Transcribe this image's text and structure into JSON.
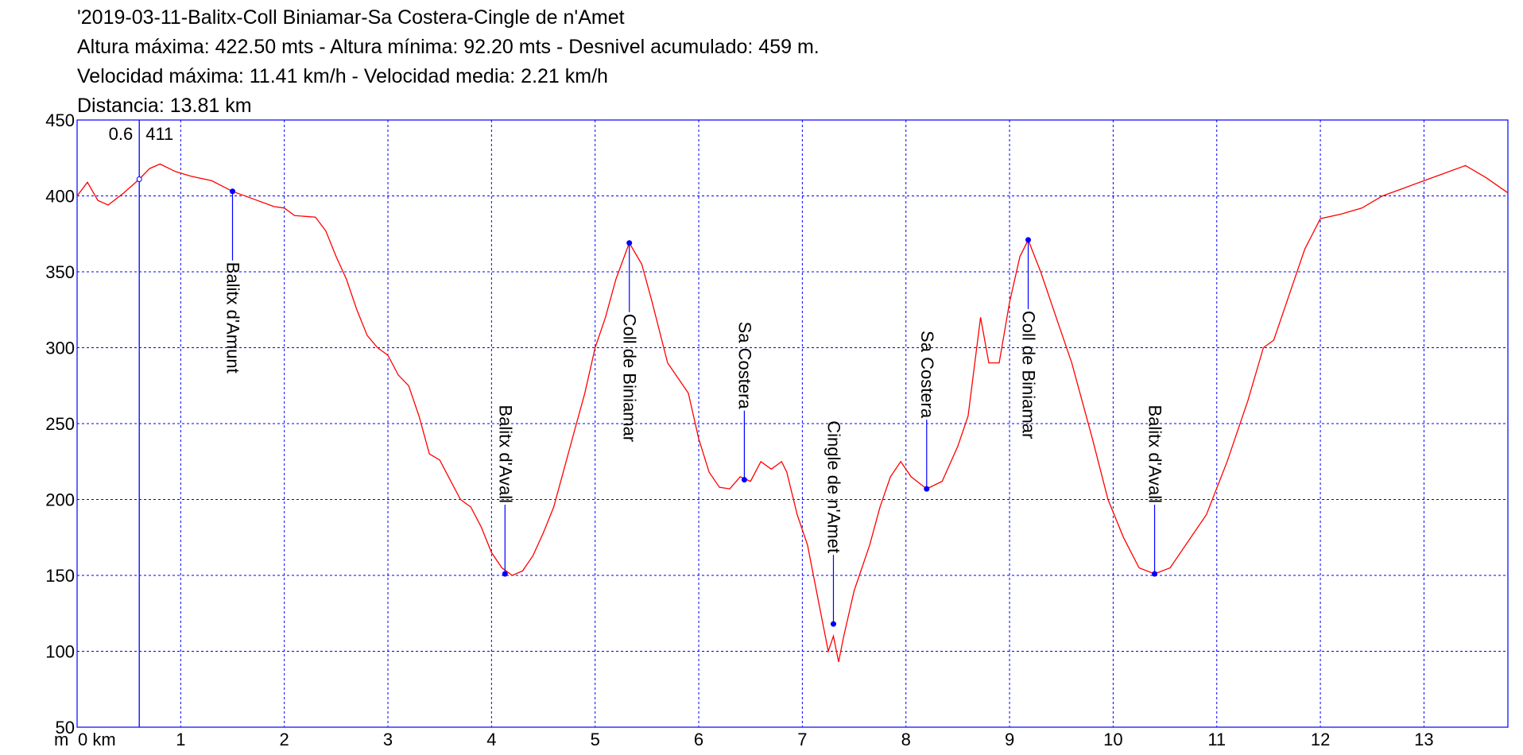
{
  "chart_data": {
    "type": "line",
    "title_lines": [
      "'2019-03-11-Balitx-Coll Biniamar-Sa Costera-Cingle de n'Amet",
      "Altura máxima: 422.50 mts - Altura mínima: 92.20 mts - Desnivel acumulado: 459 m.",
      "Velocidad máxima: 11.41 km/h - Velocidad media: 2.21 km/h",
      "Distancia: 13.81 km"
    ],
    "y_unit": "m",
    "xlim": [
      0,
      13.81
    ],
    "ylim": [
      50,
      450
    ],
    "xticks": [
      {
        "value": 0,
        "label": "0 km"
      },
      1,
      2,
      3,
      4,
      5,
      6,
      7,
      8,
      9,
      10,
      11,
      12,
      13
    ],
    "yticks": [
      50,
      100,
      150,
      200,
      250,
      300,
      350,
      400,
      450
    ],
    "grid": true,
    "line_color": "#ff0000",
    "axis_color": "#0000ff",
    "profile": {
      "x": [
        0,
        0.1,
        0.2,
        0.3,
        0.45,
        0.6,
        0.7,
        0.8,
        0.95,
        1.1,
        1.3,
        1.5,
        1.7,
        1.9,
        2.0,
        2.1,
        2.3,
        2.4,
        2.5,
        2.6,
        2.7,
        2.8,
        2.9,
        3.0,
        3.1,
        3.2,
        3.3,
        3.4,
        3.5,
        3.6,
        3.7,
        3.8,
        3.9,
        4.0,
        4.1,
        4.2,
        4.3,
        4.4,
        4.5,
        4.6,
        4.7,
        4.8,
        4.9,
        5.0,
        5.1,
        5.2,
        5.33,
        5.45,
        5.55,
        5.7,
        5.8,
        5.9,
        6.0,
        6.1,
        6.2,
        6.3,
        6.4,
        6.5,
        6.6,
        6.7,
        6.8,
        6.85,
        6.95,
        7.05,
        7.15,
        7.25,
        7.3,
        7.35,
        7.4,
        7.5,
        7.55,
        7.65,
        7.75,
        7.85,
        7.95,
        8.05,
        8.2,
        8.35,
        8.5,
        8.6,
        8.72,
        8.8,
        8.9,
        9.0,
        9.1,
        9.18,
        9.3,
        9.45,
        9.6,
        9.8,
        9.95,
        10.1,
        10.25,
        10.4,
        10.55,
        10.7,
        10.9,
        11.1,
        11.3,
        11.45,
        11.55,
        11.7,
        11.85,
        12.0,
        12.2,
        12.4,
        12.6,
        12.8,
        13.0,
        13.2,
        13.4,
        13.6,
        13.81
      ],
      "y": [
        400,
        409,
        397,
        394,
        402,
        411,
        418,
        421,
        416,
        413,
        410,
        403,
        398,
        393,
        392,
        387,
        386,
        377,
        360,
        345,
        325,
        308,
        300,
        295,
        282,
        275,
        255,
        230,
        226,
        213,
        200,
        195,
        182,
        165,
        155,
        150,
        153,
        163,
        178,
        195,
        220,
        245,
        270,
        300,
        320,
        345,
        369,
        355,
        330,
        290,
        280,
        270,
        240,
        218,
        208,
        207,
        215,
        212,
        225,
        220,
        225,
        218,
        190,
        170,
        135,
        100,
        110,
        93,
        110,
        140,
        150,
        170,
        195,
        215,
        225,
        215,
        207,
        212,
        235,
        255,
        320,
        290,
        290,
        330,
        360,
        371,
        350,
        320,
        290,
        240,
        200,
        175,
        155,
        151,
        155,
        170,
        190,
        225,
        265,
        300,
        305,
        335,
        365,
        385,
        388,
        392,
        400,
        405,
        410,
        415,
        420,
        412,
        402
      ]
    },
    "cursor": {
      "x": 0.6,
      "y": 411
    },
    "waypoints": [
      {
        "name": "Balitx d'Amunt",
        "x": 1.5,
        "y": 403
      },
      {
        "name": "Balitx d'Avall",
        "x": 4.13,
        "y": 151
      },
      {
        "name": "Coll de Biniamar",
        "x": 5.33,
        "y": 369
      },
      {
        "name": "Sa Costera",
        "x": 6.44,
        "y": 213
      },
      {
        "name": "Cingle de n'Amet",
        "x": 7.3,
        "y": 118
      },
      {
        "name": "Sa Costera",
        "x": 8.2,
        "y": 207
      },
      {
        "name": "Coll de Biniamar",
        "x": 9.18,
        "y": 371
      },
      {
        "name": "Balitx d'Avall",
        "x": 10.4,
        "y": 151
      }
    ]
  }
}
